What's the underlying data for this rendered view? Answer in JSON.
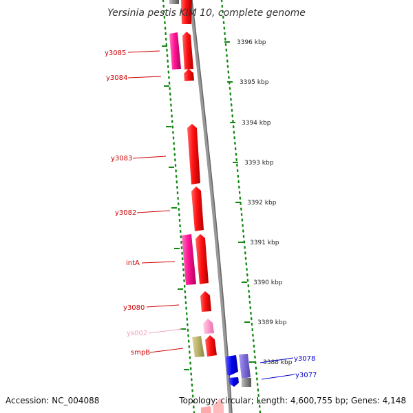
{
  "title": "Yersinia pestis KIM 10, complete genome",
  "footer": {
    "accession": "Accession: NC_004088",
    "summary": "Topology: circular; Length: 4,600,755 bp; Genes: 4,148"
  },
  "ticks": [
    "3396 kbp",
    "3395 kbp",
    "3394 kbp",
    "3393 kbp",
    "3392 kbp",
    "3391 kbp",
    "3390 kbp",
    "3389 kbp",
    "3388 kbp"
  ],
  "gene_labels": [
    {
      "name": "y3085",
      "color": "#cc0000"
    },
    {
      "name": "y3084",
      "color": "#cc0000"
    },
    {
      "name": "y3083",
      "color": "#cc0000"
    },
    {
      "name": "y3082",
      "color": "#cc0000"
    },
    {
      "name": "intA",
      "color": "#cc0000"
    },
    {
      "name": "y3080",
      "color": "#cc0000"
    },
    {
      "name": "ys002",
      "color": "#f4a0c0"
    },
    {
      "name": "smpB",
      "color": "#cc0000"
    },
    {
      "name": "y3078",
      "color": "#0000cc"
    },
    {
      "name": "y3077",
      "color": "#0000cc"
    }
  ],
  "colors": {
    "gene_red": "#ee0000",
    "gene_magenta": "#ff1493",
    "gene_pink": "#ff99cc",
    "gene_olive": "#b8b06a",
    "gene_blue": "#0000ee",
    "gene_slate": "#7b68d8",
    "track_dots": "#118811",
    "backbone": "#888888"
  }
}
